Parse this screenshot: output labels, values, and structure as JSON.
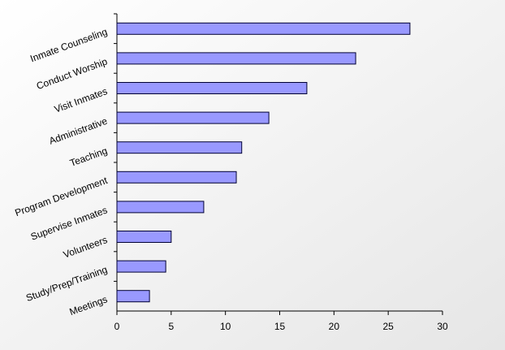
{
  "chart_data": {
    "type": "hbar",
    "categories": [
      "Inmate Counseling",
      "Conduct Worship",
      "Visit Inmates",
      "Administrative",
      "Teaching",
      "Program Development",
      "Supervise Inmates",
      "Volunteers",
      "Study/Prep/Training",
      "Meetings"
    ],
    "values": [
      27,
      22,
      17.5,
      14,
      11.5,
      11,
      8,
      5,
      4.5,
      3
    ],
    "color": "#9999ff",
    "xlim": [
      0,
      30
    ],
    "xticks": [
      0,
      5,
      10,
      15,
      20,
      25,
      30
    ],
    "grid": false
  }
}
